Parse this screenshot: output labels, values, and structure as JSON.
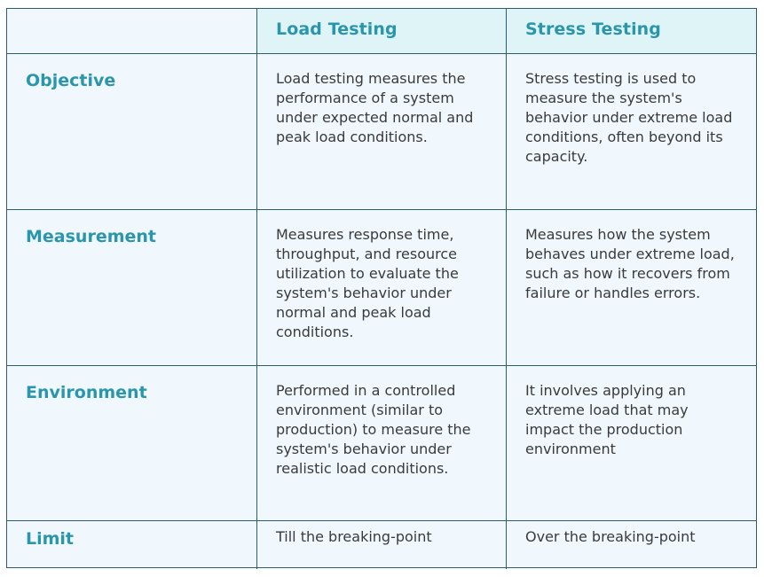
{
  "table": {
    "headers": [
      "",
      "Load Testing",
      "Stress Testing"
    ],
    "rows": [
      {
        "label": "Objective",
        "load": "Load testing measures the performance of a system under expected normal and peak load conditions.",
        "stress": "Stress testing is used to measure the system's behavior under extreme load conditions, often beyond its capacity."
      },
      {
        "label": "Measurement",
        "load": "Measures response time, throughput, and resource utilization to evaluate the system's behavior under normal and peak load conditions.",
        "stress": "Measures how the system behaves under extreme load, such as how it recovers from failure or handles errors."
      },
      {
        "label": "Environment",
        "load": "Performed in a controlled environment (similar to production) to measure the system's behavior under realistic load conditions.",
        "stress": "It involves applying an extreme load that may impact the production environment"
      },
      {
        "label": "Limit",
        "load": "Till the breaking-point",
        "stress": "Over the breaking-point"
      }
    ]
  },
  "colors": {
    "header_background": "#dff4f7",
    "body_background": "#f0f8fd",
    "accent_text": "#2a96ab",
    "body_text": "#3a3a3a",
    "border": "#2b5d6b"
  }
}
